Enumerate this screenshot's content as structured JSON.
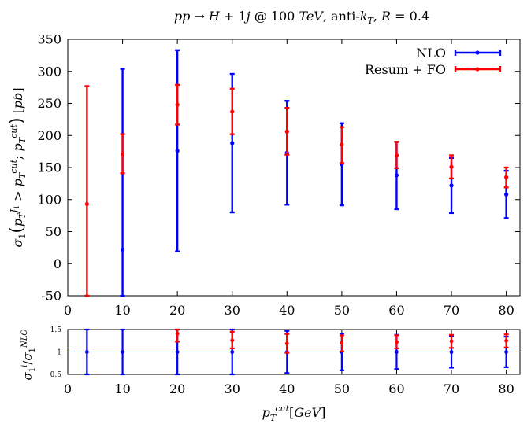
{
  "chart_data": [
    {
      "type": "scatter",
      "title": "pp → H + 1j @ 100 TeV, anti-k_T, R = 0.4",
      "xlabel": "p_T^cut [GeV]",
      "ylabel": "σ_1 (p_T^J1 > p_T^cut; p_T^cut) [pb]",
      "xlim": [
        0,
        82.5
      ],
      "ylim": [
        -50,
        350
      ],
      "xticks": [
        "0",
        "10",
        "20",
        "30",
        "40",
        "50",
        "60",
        "70",
        "80"
      ],
      "yticks": [
        "-50",
        "0",
        "50",
        "100",
        "150",
        "200",
        "250",
        "300",
        "350"
      ],
      "legend": "top-right",
      "grid": false,
      "series": [
        {
          "name": "NLO",
          "color": "#0000ff",
          "points": [
            {
              "x": 10,
              "y": 22,
              "lo": -50,
              "hi": 304
            },
            {
              "x": 20,
              "y": 176,
              "lo": 19,
              "hi": 333
            },
            {
              "x": 30,
              "y": 188,
              "lo": 80,
              "hi": 296
            },
            {
              "x": 40,
              "y": 173,
              "lo": 92,
              "hi": 254
            },
            {
              "x": 50,
              "y": 155,
              "lo": 91,
              "hi": 219
            },
            {
              "x": 60,
              "y": 138,
              "lo": 85,
              "hi": 190
            },
            {
              "x": 70,
              "y": 122,
              "lo": 79,
              "hi": 165
            },
            {
              "x": 80,
              "y": 108,
              "lo": 71,
              "hi": 145
            }
          ]
        },
        {
          "name": "Resum + FO",
          "color": "#ff0000",
          "points": [
            {
              "x": 3.5,
              "y": 93,
              "lo": -50,
              "hi": 277
            },
            {
              "x": 10,
              "y": 171,
              "lo": 141,
              "hi": 202
            },
            {
              "x": 20,
              "y": 248,
              "lo": 217,
              "hi": 279
            },
            {
              "x": 30,
              "y": 237,
              "lo": 202,
              "hi": 273
            },
            {
              "x": 40,
              "y": 206,
              "lo": 170,
              "hi": 243
            },
            {
              "x": 50,
              "y": 186,
              "lo": 157,
              "hi": 213
            },
            {
              "x": 60,
              "y": 169,
              "lo": 149,
              "hi": 190
            },
            {
              "x": 70,
              "y": 151,
              "lo": 133,
              "hi": 169
            },
            {
              "x": 80,
              "y": 135,
              "lo": 119,
              "hi": 150
            }
          ]
        }
      ]
    },
    {
      "type": "scatter",
      "ylabel": "σ_1^i / σ_1^NLO",
      "xlim": [
        0,
        82.5
      ],
      "ylim": [
        0.5,
        1.5
      ],
      "xticks": [
        "0",
        "10",
        "20",
        "30",
        "40",
        "50",
        "60",
        "70",
        "80"
      ],
      "yticks": [
        "0.5",
        "1",
        "1.5"
      ],
      "reference_line": 1,
      "reference_color": "#6b8cff",
      "series": [
        {
          "name": "NLO",
          "color": "#0000ff",
          "points": [
            {
              "x": 3.5,
              "y": 1.0,
              "lo": 0.5,
              "hi": 1.5
            },
            {
              "x": 10,
              "y": 1.0,
              "lo": 0.5,
              "hi": 1.5
            },
            {
              "x": 20,
              "y": 1.0,
              "lo": 0.5,
              "hi": 1.5
            },
            {
              "x": 30,
              "y": 1.0,
              "lo": 0.5,
              "hi": 1.5
            },
            {
              "x": 40,
              "y": 1.0,
              "lo": 0.53,
              "hi": 1.47
            },
            {
              "x": 50,
              "y": 1.0,
              "lo": 0.59,
              "hi": 1.41
            },
            {
              "x": 60,
              "y": 1.0,
              "lo": 0.62,
              "hi": 1.38
            },
            {
              "x": 70,
              "y": 1.0,
              "lo": 0.65,
              "hi": 1.35
            },
            {
              "x": 80,
              "y": 1.0,
              "lo": 0.66,
              "hi": 1.34
            }
          ]
        },
        {
          "name": "Resum + FO",
          "color": "#ff0000",
          "points": [
            {
              "x": 20,
              "y": 1.41,
              "lo": 1.23,
              "hi": 1.5
            },
            {
              "x": 30,
              "y": 1.26,
              "lo": 1.08,
              "hi": 1.45
            },
            {
              "x": 40,
              "y": 1.19,
              "lo": 0.98,
              "hi": 1.4
            },
            {
              "x": 50,
              "y": 1.2,
              "lo": 1.01,
              "hi": 1.37
            },
            {
              "x": 60,
              "y": 1.22,
              "lo": 1.08,
              "hi": 1.37
            },
            {
              "x": 70,
              "y": 1.24,
              "lo": 1.09,
              "hi": 1.38
            },
            {
              "x": 80,
              "y": 1.25,
              "lo": 1.1,
              "hi": 1.39
            }
          ]
        }
      ]
    }
  ]
}
